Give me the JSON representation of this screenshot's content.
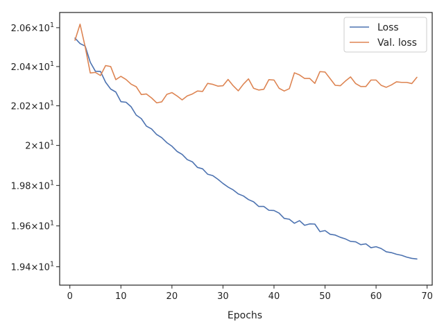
{
  "chart_data": {
    "type": "line",
    "title": "",
    "xlabel": "Epochs",
    "ylabel": "",
    "xlim": [
      -2,
      71
    ],
    "ylim": [
      19.3108,
      20.6787
    ],
    "yscale": "log",
    "grid": false,
    "legend_position": "top-right",
    "x_ticks": [
      0,
      10,
      20,
      30,
      40,
      50,
      60,
      70
    ],
    "x_tick_labels": [
      "0",
      "10",
      "20",
      "30",
      "40",
      "50",
      "60",
      "70"
    ],
    "y_ticks": [
      19.4,
      19.6,
      19.8,
      20.0,
      20.2,
      20.4,
      20.6
    ],
    "y_tick_labels": [
      {
        "mantissa": "1.94",
        "exponent": "1"
      },
      {
        "mantissa": "1.96",
        "exponent": "1"
      },
      {
        "mantissa": "1.98",
        "exponent": "1"
      },
      {
        "mantissa": "2",
        "exponent": "1"
      },
      {
        "mantissa": "2.02",
        "exponent": "1"
      },
      {
        "mantissa": "2.04",
        "exponent": "1"
      },
      {
        "mantissa": "2.06",
        "exponent": "1"
      }
    ],
    "x": [
      1,
      2,
      3,
      4,
      5,
      6,
      7,
      8,
      9,
      10,
      11,
      12,
      13,
      14,
      15,
      16,
      17,
      18,
      19,
      20,
      21,
      22,
      23,
      24,
      25,
      26,
      27,
      28,
      29,
      30,
      31,
      32,
      33,
      34,
      35,
      36,
      37,
      38,
      39,
      40,
      41,
      42,
      43,
      44,
      45,
      46,
      47,
      48,
      49,
      50,
      51,
      52,
      53,
      54,
      55,
      56,
      57,
      58,
      59,
      60,
      61,
      62,
      63,
      64,
      65,
      66,
      67,
      68
    ],
    "series": [
      {
        "name": "Loss",
        "color": "#4c72b0",
        "values": [
          20.546,
          20.518,
          20.505,
          20.422,
          20.376,
          20.375,
          20.32,
          20.285,
          20.27,
          20.221,
          20.218,
          20.195,
          20.153,
          20.135,
          20.097,
          20.083,
          20.055,
          20.039,
          20.014,
          19.996,
          19.97,
          19.955,
          19.929,
          19.918,
          19.89,
          19.883,
          19.856,
          19.849,
          19.831,
          19.81,
          19.792,
          19.778,
          19.758,
          19.748,
          19.73,
          19.719,
          19.696,
          19.696,
          19.677,
          19.676,
          19.663,
          19.637,
          19.633,
          19.613,
          19.626,
          19.603,
          19.61,
          19.609,
          19.572,
          19.577,
          19.559,
          19.555,
          19.544,
          19.536,
          19.524,
          19.522,
          19.508,
          19.512,
          19.493,
          19.498,
          19.489,
          19.473,
          19.469,
          19.461,
          19.456,
          19.447,
          19.441,
          19.438
        ]
      },
      {
        "name": "Val. loss",
        "color": "#dd8452",
        "values": [
          20.535,
          20.618,
          20.501,
          20.367,
          20.37,
          20.354,
          20.405,
          20.4,
          20.333,
          20.35,
          20.334,
          20.31,
          20.297,
          20.257,
          20.26,
          20.24,
          20.215,
          20.22,
          20.258,
          20.267,
          20.25,
          20.23,
          20.25,
          20.26,
          20.275,
          20.273,
          20.314,
          20.309,
          20.3,
          20.302,
          20.334,
          20.302,
          20.276,
          20.31,
          20.337,
          20.289,
          20.28,
          20.284,
          20.333,
          20.331,
          20.289,
          20.275,
          20.287,
          20.368,
          20.357,
          20.339,
          20.339,
          20.314,
          20.374,
          20.372,
          20.338,
          20.304,
          20.302,
          20.326,
          20.347,
          20.313,
          20.298,
          20.298,
          20.331,
          20.331,
          20.304,
          20.294,
          20.306,
          20.322,
          20.319,
          20.319,
          20.313,
          20.345
        ]
      }
    ]
  }
}
